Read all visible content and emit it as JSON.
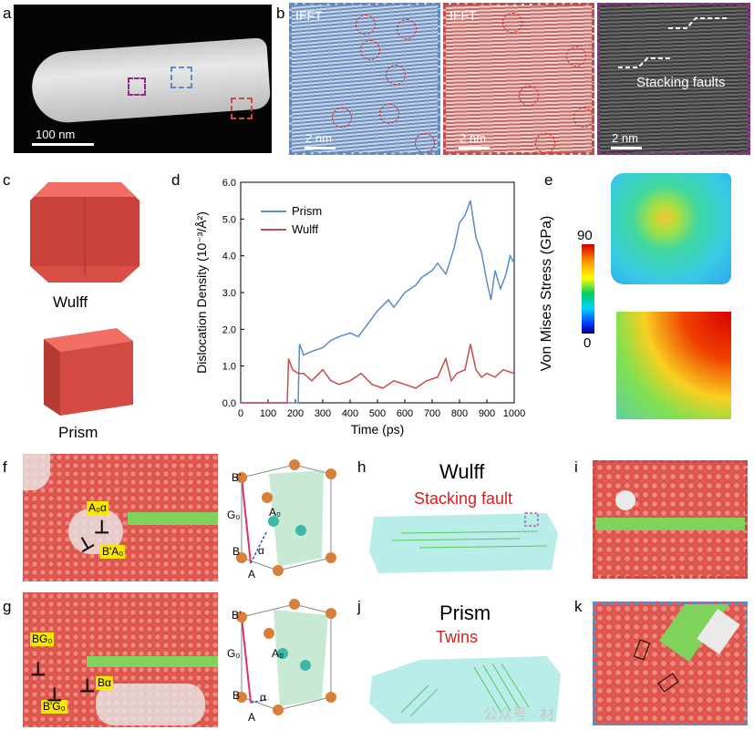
{
  "panels": {
    "a": {
      "label": "a",
      "scale_bar": "100 nm"
    },
    "b": {
      "label": "b",
      "img1_title": "IFFT",
      "img2_title": "IFFT",
      "scale_bar": "2 nm",
      "sf_label": "Stacking faults"
    },
    "c": {
      "label": "c",
      "wulff": "Wulff",
      "prism": "Prism"
    },
    "d": {
      "label": "d"
    },
    "e": {
      "label": "e",
      "colorbar_title": "Von Mises Stress (GPa)",
      "cb_max": "90",
      "cb_min": "0"
    },
    "f": {
      "label": "f",
      "tag1": "A₀α",
      "tag2": "B'A₀",
      "lat_B1": "B'",
      "lat_G": "G₀",
      "lat_A0": "A₀",
      "lat_alpha": "α",
      "lat_B": "B",
      "lat_A": "A"
    },
    "g": {
      "label": "g",
      "tag1": "BG₀",
      "tag2": "Bα",
      "tag3": "B'G₀",
      "lat_B1": "B'",
      "lat_G": "G₀",
      "lat_A0": "A₀",
      "lat_alpha": "α",
      "lat_B": "B",
      "lat_A": "A"
    },
    "h": {
      "label": "h",
      "title": "Wulff",
      "subtitle": "Stacking fault"
    },
    "i": {
      "label": "i"
    },
    "j": {
      "label": "j",
      "title": "Prism",
      "subtitle": "Twins"
    },
    "k": {
      "label": "k"
    }
  },
  "watermark": "公众号 · 材",
  "colors": {
    "prism": "#5b8cc7",
    "wulff": "#c84b4b",
    "atom": "#e05a52",
    "sf": "#7fd35a"
  },
  "chart_data": {
    "type": "line",
    "xlabel": "Time (ps)",
    "ylabel": "Dislocation Density (10⁻³/Å²)",
    "xlim": [
      0,
      1000
    ],
    "ylim": [
      0,
      6.0
    ],
    "xticks": [
      "0",
      "100",
      "200",
      "300",
      "400",
      "500",
      "600",
      "700",
      "800",
      "900",
      "1000"
    ],
    "yticks": [
      "0.0",
      "1.0",
      "2.0",
      "3.0",
      "4.0",
      "5.0",
      "6.0"
    ],
    "legend_position": "top-left",
    "series": [
      {
        "name": "Prism",
        "color": "#5b8cc7",
        "x": [
          0,
          210,
          215,
          230,
          260,
          300,
          330,
          360,
          400,
          430,
          460,
          500,
          540,
          560,
          600,
          640,
          660,
          700,
          720,
          750,
          780,
          800,
          820,
          840,
          860,
          880,
          900,
          915,
          930,
          950,
          970,
          985,
          1000
        ],
        "y": [
          0,
          0,
          1.6,
          1.3,
          1.4,
          1.5,
          1.7,
          1.8,
          1.9,
          1.8,
          2.1,
          2.5,
          2.8,
          2.6,
          3.0,
          3.2,
          3.4,
          3.6,
          3.8,
          3.5,
          4.2,
          4.9,
          5.1,
          5.5,
          4.5,
          4.1,
          3.3,
          2.8,
          3.6,
          3.1,
          3.5,
          4.0,
          3.8
        ]
      },
      {
        "name": "Wulff",
        "color": "#c84b4b",
        "x": [
          0,
          170,
          175,
          190,
          210,
          230,
          260,
          300,
          330,
          360,
          400,
          440,
          480,
          520,
          560,
          600,
          640,
          680,
          720,
          750,
          770,
          790,
          820,
          840,
          860,
          880,
          900,
          930,
          960,
          1000
        ],
        "y": [
          0,
          0,
          1.2,
          0.9,
          0.8,
          0.8,
          0.6,
          0.9,
          0.6,
          0.5,
          0.6,
          0.8,
          0.5,
          0.4,
          0.6,
          0.5,
          0.4,
          0.6,
          0.7,
          1.2,
          0.6,
          0.8,
          0.9,
          1.6,
          0.9,
          0.7,
          0.8,
          0.7,
          0.9,
          0.8
        ]
      }
    ]
  }
}
